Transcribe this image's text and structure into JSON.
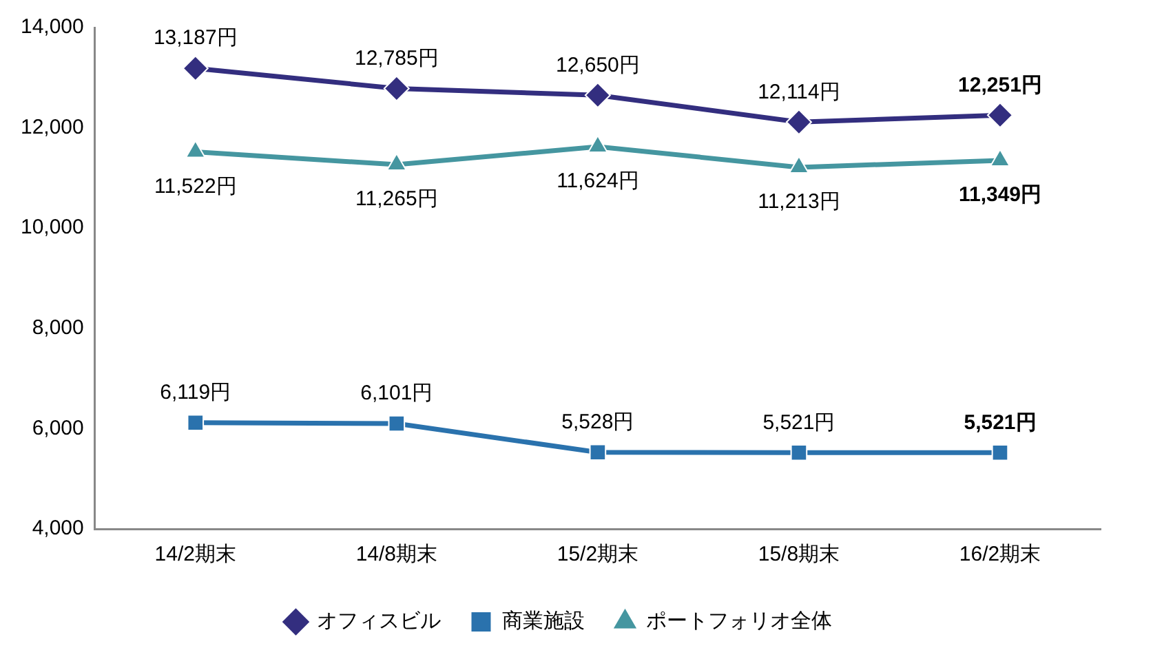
{
  "chart_data": {
    "type": "line",
    "categories": [
      "14/2期末",
      "14/8期末",
      "15/2期末",
      "15/8期末",
      "16/2期末"
    ],
    "series": [
      {
        "name": "オフィスビル",
        "color": "#332e7f",
        "marker": "diamond",
        "values": [
          13187,
          12785,
          12650,
          12114,
          12251
        ],
        "value_labels": [
          "13,187円",
          "12,785円",
          "12,650円",
          "12,114円",
          "12,251円"
        ]
      },
      {
        "name": "商業施設",
        "color": "#2a72ad",
        "marker": "square",
        "values": [
          6119,
          6101,
          5528,
          5521,
          5521
        ],
        "value_labels": [
          "6,119円",
          "6,101円",
          "5,528円",
          "5,521円",
          "5,521円"
        ]
      },
      {
        "name": "ポートフォリオ全体",
        "color": "#4596a0",
        "marker": "triangle",
        "values": [
          11522,
          11265,
          11624,
          11213,
          11349
        ],
        "value_labels": [
          "11,522円",
          "11,265円",
          "11,624円",
          "11,213円",
          "11,349円"
        ]
      }
    ],
    "ylim": [
      4000,
      14000
    ],
    "yticks": [
      {
        "value": 4000,
        "label": "4,000"
      },
      {
        "value": 6000,
        "label": "6,000"
      },
      {
        "value": 8000,
        "label": "8,000"
      },
      {
        "value": 10000,
        "label": "10,000"
      },
      {
        "value": 12000,
        "label": "12,000"
      },
      {
        "value": 14000,
        "label": "14,000"
      }
    ],
    "grid": false,
    "legend": "bottom"
  }
}
